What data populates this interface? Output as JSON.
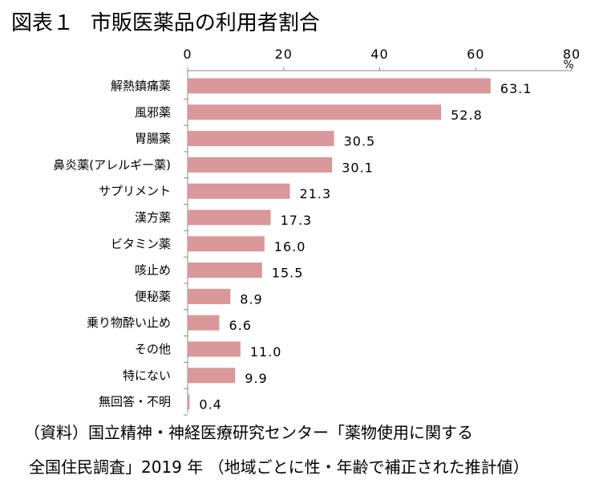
{
  "title_prefix": "図表１",
  "chart_data": {
    "type": "bar",
    "orientation": "horizontal",
    "title": "市販医薬品の利用者割合",
    "unit": "%",
    "xlim": [
      0,
      80
    ],
    "ticks": [
      0,
      20,
      40,
      60,
      80
    ],
    "grid": false,
    "bar_color": "#d9989a",
    "categories": [
      "解熱鎮痛薬",
      "風邪薬",
      "胃腸薬",
      "鼻炎薬(アレルギー薬)",
      "サプリメント",
      "漢方薬",
      "ビタミン薬",
      "咳止め",
      "便秘薬",
      "乗り物酔い止め",
      "その他",
      "特にない",
      "無回答・不明"
    ],
    "values": [
      63.1,
      52.8,
      30.5,
      30.1,
      21.3,
      17.3,
      16.0,
      15.5,
      8.9,
      6.6,
      11.0,
      9.9,
      0.4
    ],
    "value_labels": [
      "63.1",
      "52.8",
      "30.5",
      "30.1",
      "21.3",
      "17.3",
      "16.0",
      "15.5",
      "8.9",
      "6.6",
      "11.0",
      "9.9",
      "0.4"
    ]
  },
  "source_line1": "（資料）国立精神・神経医療研究センター「薬物使用に関する",
  "source_line2": "全国住民調査」2019 年 （地域ごとに性・年齢で補正された推計値）"
}
